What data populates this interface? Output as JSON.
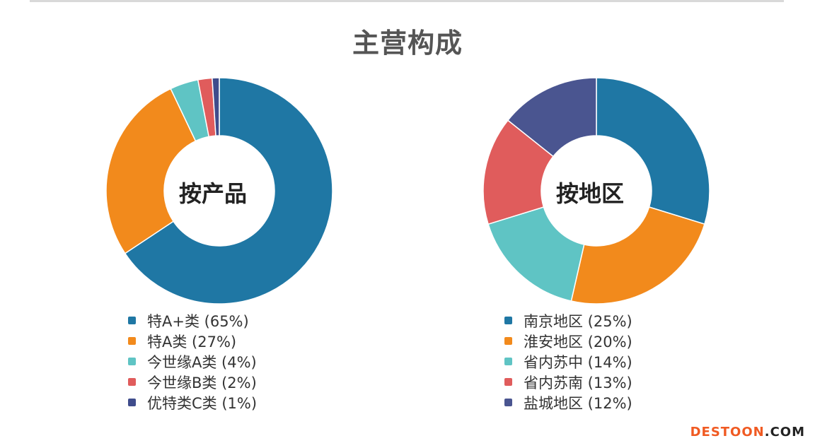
{
  "title": "主营构成",
  "watermark": {
    "part1": "DESTOON",
    "part2": ".COM",
    "color1": "#f05a22",
    "color2": "#222222"
  },
  "chart_data": [
    {
      "type": "pie",
      "subtype": "donut",
      "center_label": "按产品",
      "legend_position": "bottom",
      "slices": [
        {
          "label": "特A+类 (65%)",
          "name": "特A+类",
          "value": 65,
          "color": "#1f77a4"
        },
        {
          "label": "特A类 (27%)",
          "name": "特A类",
          "value": 27,
          "color": "#f28a1c"
        },
        {
          "label": "今世缘A类 (4%)",
          "name": "今世缘A类",
          "value": 4,
          "color": "#5fc4c4"
        },
        {
          "label": "今世缘B类 (2%)",
          "name": "今世缘B类",
          "value": 2,
          "color": "#e05c5c"
        },
        {
          "label": "优特类C类 (1%)",
          "name": "优特类C类",
          "value": 1,
          "color": "#3f4c8c"
        }
      ]
    },
    {
      "type": "pie",
      "subtype": "donut",
      "center_label": "按地区",
      "legend_position": "bottom",
      "slices": [
        {
          "label": "南京地区 (25%)",
          "name": "南京地区",
          "value": 25,
          "color": "#1f77a4"
        },
        {
          "label": "淮安地区 (20%)",
          "name": "淮安地区",
          "value": 20,
          "color": "#f28a1c"
        },
        {
          "label": "省内苏中 (14%)",
          "name": "省内苏中",
          "value": 14,
          "color": "#5fc4c4"
        },
        {
          "label": "省内苏南 (13%)",
          "name": "省内苏南",
          "value": 13,
          "color": "#e05c5c"
        },
        {
          "label": "盐城地区 (12%)",
          "name": "盐城地区",
          "value": 12,
          "color": "#4a5590"
        }
      ]
    }
  ]
}
